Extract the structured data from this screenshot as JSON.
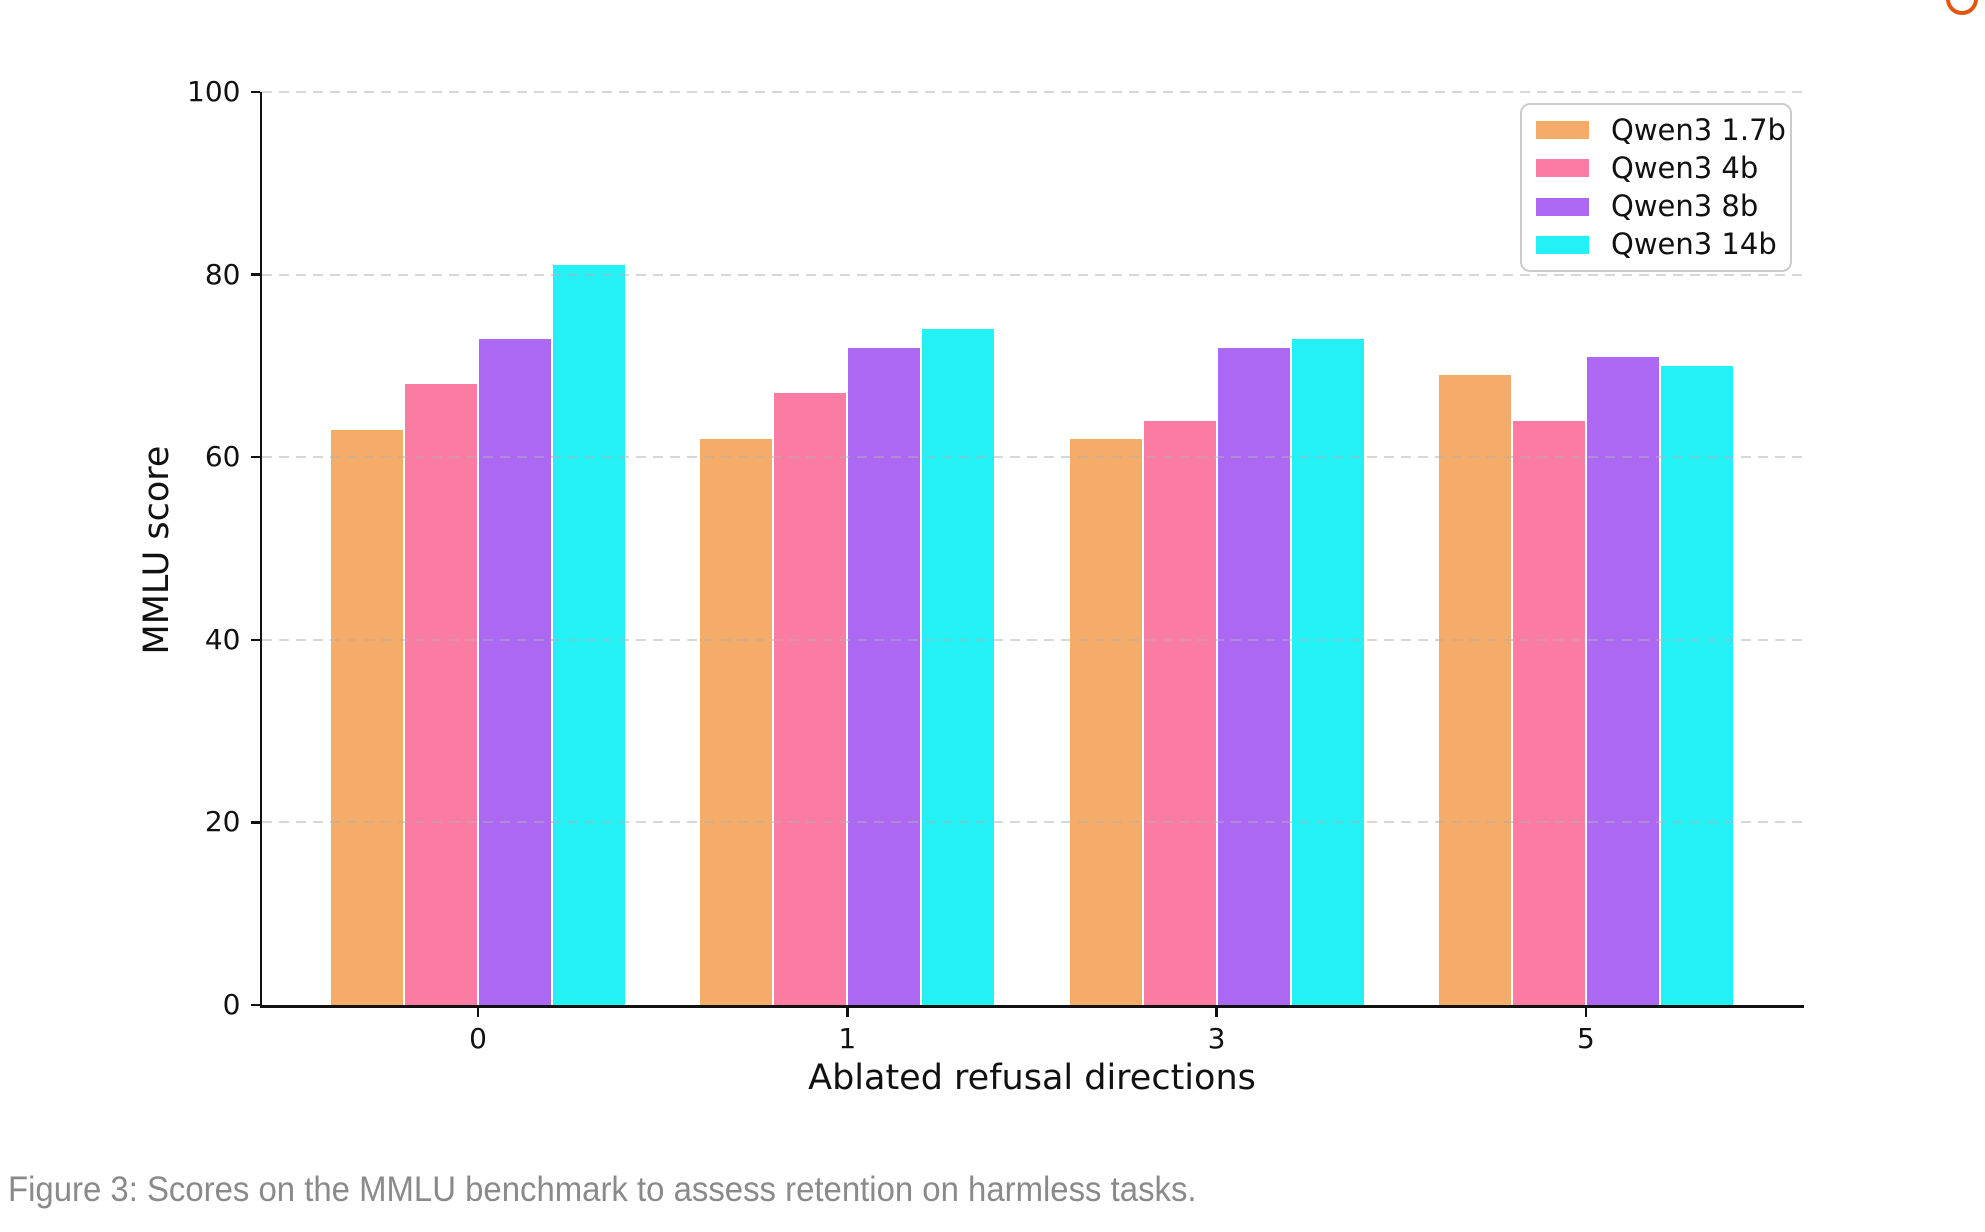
{
  "page": {
    "caption": "Figure 3: Scores on the MMLU benchmark to assess retention on harmless tasks.",
    "caption_color": "#8a8a8a",
    "background_color": "#ffffff",
    "logo_mark": "partial-orange-arc-top-right",
    "logo_mark_color": "#e2570d"
  },
  "chart_data": {
    "type": "bar",
    "title": "",
    "xlabel": "Ablated refusal directions",
    "ylabel": "MMLU score",
    "categories": [
      "0",
      "1",
      "3",
      "5"
    ],
    "series": [
      {
        "name": "Qwen3 1.7b",
        "color": "#F5AC68",
        "values": [
          63,
          62,
          62,
          69
        ]
      },
      {
        "name": "Qwen3 4b",
        "color": "#FB7CA3",
        "values": [
          68,
          67,
          64,
          64
        ]
      },
      {
        "name": "Qwen3 8b",
        "color": "#AC68F2",
        "values": [
          73,
          72,
          72,
          71
        ]
      },
      {
        "name": "Qwen3 14b",
        "color": "#24F1F6",
        "values": [
          81,
          74,
          73,
          70
        ]
      }
    ],
    "ylim": [
      0,
      100
    ],
    "yticks": [
      0,
      20,
      40,
      60,
      80,
      100
    ],
    "grid": "horizontal-dashed, drawn over bars",
    "grid_color": "#b0b0b0",
    "legend_position": "upper right",
    "axis_color": "#111111"
  }
}
